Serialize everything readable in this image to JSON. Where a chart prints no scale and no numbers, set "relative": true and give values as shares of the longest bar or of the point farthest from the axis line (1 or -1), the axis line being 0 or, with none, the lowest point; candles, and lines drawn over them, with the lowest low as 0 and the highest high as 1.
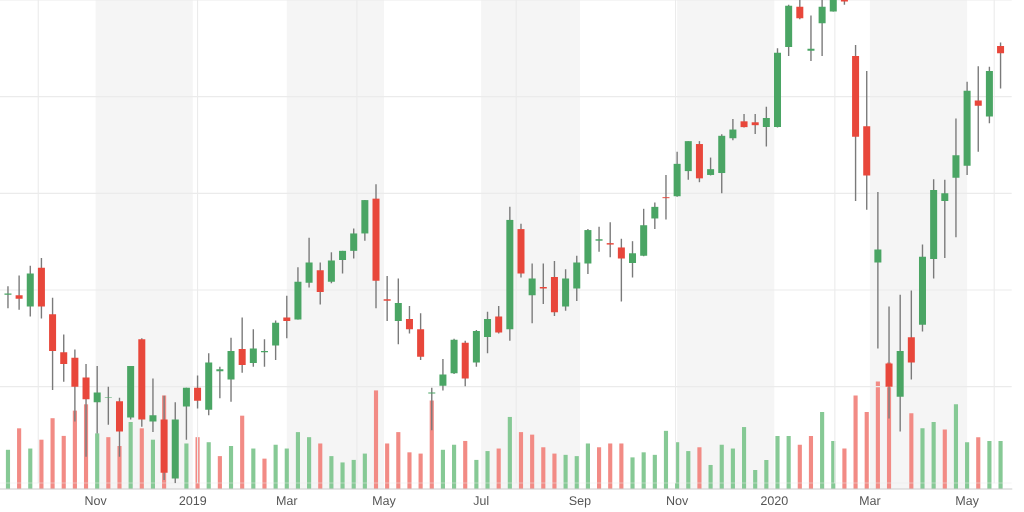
{
  "chart_data": [
    {
      "type": "candlestick",
      "relative": true,
      "grid": true,
      "tick_labels": false,
      "xlim": [
        "2018-09-02",
        "2020-05-29"
      ],
      "x": [
        "2018-09-07",
        "2018-09-14",
        "2018-09-21",
        "2018-09-28",
        "2018-10-05",
        "2018-10-12",
        "2018-10-19",
        "2018-10-26",
        "2018-11-02",
        "2018-11-09",
        "2018-11-16",
        "2018-11-23",
        "2018-11-30",
        "2018-12-07",
        "2018-12-14",
        "2018-12-21",
        "2018-12-28",
        "2019-01-04",
        "2019-01-11",
        "2019-01-18",
        "2019-01-25",
        "2019-02-01",
        "2019-02-08",
        "2019-02-15",
        "2019-02-22",
        "2019-03-01",
        "2019-03-08",
        "2019-03-15",
        "2019-03-22",
        "2019-03-29",
        "2019-04-05",
        "2019-04-12",
        "2019-04-19",
        "2019-04-26",
        "2019-05-03",
        "2019-05-10",
        "2019-05-17",
        "2019-05-24",
        "2019-05-31",
        "2019-06-07",
        "2019-06-14",
        "2019-06-21",
        "2019-06-28",
        "2019-07-05",
        "2019-07-12",
        "2019-07-19",
        "2019-07-26",
        "2019-08-02",
        "2019-08-09",
        "2019-08-16",
        "2019-08-23",
        "2019-08-30",
        "2019-09-06",
        "2019-09-13",
        "2019-09-20",
        "2019-09-27",
        "2019-10-04",
        "2019-10-11",
        "2019-10-18",
        "2019-10-25",
        "2019-11-01",
        "2019-11-08",
        "2019-11-15",
        "2019-11-22",
        "2019-11-29",
        "2019-12-06",
        "2019-12-13",
        "2019-12-20",
        "2019-12-27",
        "2020-01-03",
        "2020-01-10",
        "2020-01-17",
        "2020-01-24",
        "2020-01-31",
        "2020-02-07",
        "2020-02-14",
        "2020-02-21",
        "2020-02-28",
        "2020-03-06",
        "2020-03-13",
        "2020-03-20",
        "2020-03-27",
        "2020-04-03",
        "2020-04-10",
        "2020-04-17",
        "2020-04-24",
        "2020-05-01",
        "2020-05-08",
        "2020-05-15",
        "2020-05-22"
      ],
      "ohlc": [
        [
          0.39,
          0.408,
          0.362,
          0.393
        ],
        [
          0.389,
          0.43,
          0.359,
          0.382
        ],
        [
          0.366,
          0.45,
          0.345,
          0.434
        ],
        [
          0.446,
          0.466,
          0.341,
          0.366
        ],
        [
          0.35,
          0.384,
          0.193,
          0.274
        ],
        [
          0.271,
          0.308,
          0.21,
          0.247
        ],
        [
          0.26,
          0.277,
          0.128,
          0.2
        ],
        [
          0.219,
          0.247,
          0.055,
          0.174
        ],
        [
          0.168,
          0.243,
          0.103,
          0.188
        ],
        [
          0.177,
          0.2,
          0.121,
          0.178
        ],
        [
          0.17,
          0.177,
          0.055,
          0.107
        ],
        [
          0.136,
          0.243,
          0.132,
          0.243
        ],
        [
          0.298,
          0.3,
          0.117,
          0.132
        ],
        [
          0.128,
          0.217,
          0.106,
          0.141
        ],
        [
          0.132,
          0.181,
          0.007,
          0.022
        ],
        [
          0.01,
          0.168,
          0,
          0.132
        ],
        [
          0.159,
          0.198,
          0.09,
          0.198
        ],
        [
          0.198,
          0.223,
          0.155,
          0.171
        ],
        [
          0.152,
          0.269,
          0.141,
          0.25
        ],
        [
          0.232,
          0.241,
          0.176,
          0.236
        ],
        [
          0.215,
          0.301,
          0.169,
          0.274
        ],
        [
          0.278,
          0.343,
          0.229,
          0.245
        ],
        [
          0.249,
          0.319,
          0.241,
          0.279
        ],
        [
          0.271,
          0.298,
          0.241,
          0.274
        ],
        [
          0.285,
          0.337,
          0.255,
          0.332
        ],
        [
          0.343,
          0.388,
          0.3,
          0.336
        ],
        [
          0.339,
          0.447,
          0.339,
          0.417
        ],
        [
          0.415,
          0.508,
          0.405,
          0.457
        ],
        [
          0.441,
          0.457,
          0.37,
          0.396
        ],
        [
          0.417,
          0.478,
          0.414,
          0.461
        ],
        [
          0.462,
          0.481,
          0.434,
          0.481
        ],
        [
          0.481,
          0.527,
          0.465,
          0.517
        ],
        [
          0.517,
          0.586,
          0.502,
          0.586
        ],
        [
          0.589,
          0.619,
          0.362,
          0.419
        ],
        [
          0.381,
          0.429,
          0.336,
          0.378
        ],
        [
          0.336,
          0.424,
          0.288,
          0.373
        ],
        [
          0.34,
          0.367,
          0.31,
          0.319
        ],
        [
          0.319,
          0.352,
          0.255,
          0.262
        ],
        [
          0.186,
          0.198,
          0.11,
          0.188
        ],
        [
          0.202,
          0.257,
          0.192,
          0.225
        ],
        [
          0.228,
          0.299,
          0.226,
          0.297
        ],
        [
          0.291,
          0.295,
          0.201,
          0.217
        ],
        [
          0.25,
          0.317,
          0.241,
          0.315
        ],
        [
          0.303,
          0.355,
          0.269,
          0.34
        ],
        [
          0.345,
          0.367,
          0.31,
          0.312
        ],
        [
          0.319,
          0.572,
          0.295,
          0.545
        ],
        [
          0.526,
          0.537,
          0.426,
          0.434
        ],
        [
          0.389,
          0.455,
          0.331,
          0.424
        ],
        [
          0.406,
          0.455,
          0.371,
          0.403
        ],
        [
          0.427,
          0.46,
          0.346,
          0.354
        ],
        [
          0.366,
          0.443,
          0.357,
          0.424
        ],
        [
          0.403,
          0.471,
          0.377,
          0.457
        ],
        [
          0.455,
          0.526,
          0.433,
          0.524
        ],
        [
          0.502,
          0.531,
          0.479,
          0.505
        ],
        [
          0.497,
          0.54,
          0.468,
          0.494
        ],
        [
          0.488,
          0.506,
          0.376,
          0.465
        ],
        [
          0.456,
          0.501,
          0.426,
          0.476
        ],
        [
          0.471,
          0.568,
          0.47,
          0.534
        ],
        [
          0.548,
          0.581,
          0.526,
          0.572
        ],
        [
          0.592,
          0.638,
          0.546,
          0.59
        ],
        [
          0.594,
          0.686,
          0.593,
          0.661
        ],
        [
          0.646,
          0.708,
          0.628,
          0.708
        ],
        [
          0.702,
          0.708,
          0.623,
          0.631
        ],
        [
          0.638,
          0.674,
          0.637,
          0.65
        ],
        [
          0.642,
          0.722,
          0.6,
          0.719
        ],
        [
          0.714,
          0.754,
          0.71,
          0.732
        ],
        [
          0.749,
          0.764,
          0.736,
          0.737
        ],
        [
          0.747,
          0.764,
          0.723,
          0.741
        ],
        [
          0.737,
          0.779,
          0.697,
          0.756
        ],
        [
          0.737,
          0.9,
          0.736,
          0.891
        ],
        [
          0.903,
          0.99,
          0.884,
          0.988
        ],
        [
          0.986,
          1,
          0.96,
          0.962
        ],
        [
          0.895,
          0.968,
          0.874,
          0.899
        ],
        [
          0.952,
          1,
          0.884,
          0.986
        ],
        [
          0.976,
          1,
          0.976,
          1
        ],
        [
          1,
          1,
          0.99,
          0.997
        ],
        [
          0.884,
          0.907,
          0.584,
          0.717
        ],
        [
          0.739,
          0.853,
          0.566,
          0.637
        ],
        [
          0.457,
          0.603,
          0.279,
          0.484
        ],
        [
          0.248,
          0.366,
          0.134,
          0.2
        ],
        [
          0.179,
          0.39,
          0.107,
          0.274
        ],
        [
          0.302,
          0.399,
          0.215,
          0.25
        ],
        [
          0.328,
          0.494,
          0.314,
          0.469
        ],
        [
          0.464,
          0.629,
          0.424,
          0.607
        ],
        [
          0.584,
          0.628,
          0.466,
          0.6
        ],
        [
          0.632,
          0.755,
          0.509,
          0.679
        ],
        [
          0.657,
          0.831,
          0.638,
          0.812
        ],
        [
          0.792,
          0.863,
          0.686,
          0.781
        ],
        [
          0.759,
          0.862,
          0.745,
          0.853
        ],
        [
          0.905,
          0.912,
          0.817,
          0.89
        ]
      ],
      "colors": [
        "#4aa564",
        "#e8473b",
        "#4aa564",
        "#e8473b",
        "#e8473b",
        "#e8473b",
        "#e8473b",
        "#e8473b",
        "#4aa564",
        "#4aa564",
        "#e8473b",
        "#4aa564",
        "#e8473b",
        "#4aa564",
        "#e8473b",
        "#4aa564",
        "#4aa564",
        "#e8473b",
        "#4aa564",
        "#4aa564",
        "#4aa564",
        "#e8473b",
        "#4aa564",
        "#4aa564",
        "#4aa564",
        "#e8473b",
        "#4aa564",
        "#4aa564",
        "#e8473b",
        "#4aa564",
        "#4aa564",
        "#4aa564",
        "#4aa564",
        "#e8473b",
        "#e8473b",
        "#4aa564",
        "#e8473b",
        "#e8473b",
        "#4aa564",
        "#4aa564",
        "#4aa564",
        "#e8473b",
        "#4aa564",
        "#4aa564",
        "#e8473b",
        "#4aa564",
        "#e8473b",
        "#4aa564",
        "#e8473b",
        "#e8473b",
        "#4aa564",
        "#4aa564",
        "#4aa564",
        "#4aa564",
        "#e8473b",
        "#e8473b",
        "#4aa564",
        "#4aa564",
        "#4aa564",
        "#e8473b",
        "#4aa564",
        "#4aa564",
        "#e8473b",
        "#4aa564",
        "#4aa564",
        "#4aa564",
        "#e8473b",
        "#e8473b",
        "#4aa564",
        "#4aa564",
        "#4aa564",
        "#e8473b",
        "#4aa564",
        "#4aa564",
        "#4aa564",
        "#e8473b",
        "#e8473b",
        "#e8473b",
        "#4aa564",
        "#e8473b",
        "#4aa564",
        "#e8473b",
        "#4aa564",
        "#4aa564",
        "#4aa564",
        "#4aa564",
        "#4aa564",
        "#e8473b",
        "#4aa564",
        "#e8473b"
      ]
    },
    {
      "type": "bar",
      "relative": true,
      "tick_labels": "x",
      "xticks": [
        {
          "value": "2018-11-01",
          "label": "Nov"
        },
        {
          "value": "2019-01-01",
          "label": "2019"
        },
        {
          "value": "2019-03-01",
          "label": "Mar"
        },
        {
          "value": "2019-05-01",
          "label": "May"
        },
        {
          "value": "2019-07-01",
          "label": "Jul"
        },
        {
          "value": "2019-09-01",
          "label": "Sep"
        },
        {
          "value": "2019-11-01",
          "label": "Nov"
        },
        {
          "value": "2020-01-01",
          "label": "2020"
        },
        {
          "value": "2020-03-01",
          "label": "Mar"
        },
        {
          "value": "2020-05-01",
          "label": "May"
        }
      ],
      "x": [
        "2018-09-07",
        "2018-09-14",
        "2018-09-21",
        "2018-09-28",
        "2018-10-05",
        "2018-10-12",
        "2018-10-19",
        "2018-10-26",
        "2018-11-02",
        "2018-11-09",
        "2018-11-16",
        "2018-11-23",
        "2018-11-30",
        "2018-12-07",
        "2018-12-14",
        "2018-12-21",
        "2018-12-28",
        "2019-01-04",
        "2019-01-11",
        "2019-01-18",
        "2019-01-25",
        "2019-02-01",
        "2019-02-08",
        "2019-02-15",
        "2019-02-22",
        "2019-03-01",
        "2019-03-08",
        "2019-03-15",
        "2019-03-22",
        "2019-03-29",
        "2019-04-05",
        "2019-04-12",
        "2019-04-19",
        "2019-04-26",
        "2019-05-03",
        "2019-05-10",
        "2019-05-17",
        "2019-05-24",
        "2019-05-31",
        "2019-06-07",
        "2019-06-14",
        "2019-06-21",
        "2019-06-28",
        "2019-07-05",
        "2019-07-12",
        "2019-07-19",
        "2019-07-26",
        "2019-08-02",
        "2019-08-09",
        "2019-08-16",
        "2019-08-23",
        "2019-08-30",
        "2019-09-06",
        "2019-09-13",
        "2019-09-20",
        "2019-09-27",
        "2019-10-04",
        "2019-10-11",
        "2019-10-18",
        "2019-10-25",
        "2019-11-01",
        "2019-11-08",
        "2019-11-15",
        "2019-11-22",
        "2019-11-29",
        "2019-12-06",
        "2019-12-13",
        "2019-12-20",
        "2019-12-27",
        "2020-01-03",
        "2020-01-10",
        "2020-01-17",
        "2020-01-24",
        "2020-01-31",
        "2020-02-07",
        "2020-02-14",
        "2020-02-21",
        "2020-02-28",
        "2020-03-06",
        "2020-03-13",
        "2020-03-20",
        "2020-03-27",
        "2020-04-03",
        "2020-04-10",
        "2020-04-17",
        "2020-04-24",
        "2020-05-01",
        "2020-05-08",
        "2020-05-15",
        "2020-05-22"
      ],
      "values": [
        0.31,
        0.48,
        0.32,
        0.39,
        0.56,
        0.42,
        0.62,
        0.67,
        0.44,
        0.41,
        0.34,
        0.53,
        0.48,
        0.39,
        0.74,
        null,
        0.36,
        0.41,
        0.37,
        0.26,
        0.34,
        0.58,
        0.32,
        0.24,
        0.35,
        0.32,
        0.45,
        0.41,
        0.36,
        0.26,
        0.21,
        0.23,
        0.28,
        0.78,
        0.36,
        0.45,
        0.29,
        0.28,
        0.7,
        0.31,
        0.35,
        0.38,
        0.23,
        0.3,
        0.32,
        0.57,
        0.45,
        0.43,
        0.33,
        0.28,
        0.27,
        0.26,
        0.36,
        0.33,
        0.36,
        0.36,
        0.25,
        0.29,
        0.27,
        0.46,
        0.37,
        0.3,
        0.33,
        0.19,
        0.35,
        0.32,
        0.49,
        0.15,
        0.23,
        0.42,
        0.42,
        0.35,
        0.42,
        0.61,
        0.38,
        0.32,
        0.74,
        0.61,
        0.85,
        1,
        null,
        0.6,
        0.48,
        0.53,
        0.47,
        0.67,
        0.37,
        0.41,
        0.38,
        0.38
      ],
      "colors": [
        "#86c995",
        "#f28b85",
        "#86c995",
        "#f28b85",
        "#f28b85",
        "#f28b85",
        "#f28b85",
        "#f28b85",
        "#86c995",
        "#f28b85",
        "#f28b85",
        "#86c995",
        "#f28b85",
        "#86c995",
        "#f28b85",
        "#86c995",
        "#86c995",
        "#f28b85",
        "#86c995",
        "#f28b85",
        "#86c995",
        "#f28b85",
        "#86c995",
        "#f28b85",
        "#86c995",
        "#86c995",
        "#86c995",
        "#86c995",
        "#f28b85",
        "#86c995",
        "#86c995",
        "#86c995",
        "#86c995",
        "#f28b85",
        "#f28b85",
        "#f28b85",
        "#f28b85",
        "#f28b85",
        "#f28b85",
        "#86c995",
        "#86c995",
        "#f28b85",
        "#86c995",
        "#86c995",
        "#f28b85",
        "#86c995",
        "#f28b85",
        "#f28b85",
        "#f28b85",
        "#f28b85",
        "#86c995",
        "#86c995",
        "#86c995",
        "#f28b85",
        "#f28b85",
        "#f28b85",
        "#86c995",
        "#86c995",
        "#86c995",
        "#86c995",
        "#86c995",
        "#86c995",
        "#f28b85",
        "#86c995",
        "#86c995",
        "#86c995",
        "#86c995",
        "#86c995",
        "#86c995",
        "#86c995",
        "#86c995",
        "#f28b85",
        "#f28b85",
        "#86c995",
        "#86c995",
        "#f28b85",
        "#f28b85",
        "#f28b85",
        "#f28b85",
        "#f28b85",
        "#86c995",
        "#f28b85",
        "#86c995",
        "#86c995",
        "#f28b85",
        "#86c995",
        "#86c995",
        "#f28b85",
        "#86c995",
        "#86c995"
      ],
      "xlim": [
        "2018-09-02",
        "2020-05-29"
      ],
      "bands": [
        {
          "axis": "x",
          "from": "2018-11-01",
          "to": "2019-01-01",
          "color": "#f5f5f5"
        },
        {
          "axis": "x",
          "from": "2019-03-01",
          "to": "2019-05-01",
          "color": "#f5f5f5"
        },
        {
          "axis": "x",
          "from": "2019-07-01",
          "to": "2019-09-01",
          "color": "#f5f5f5"
        },
        {
          "axis": "x",
          "from": "2019-11-01",
          "to": "2020-01-01",
          "color": "#f5f5f5"
        },
        {
          "axis": "x",
          "from": "2020-03-01",
          "to": "2020-05-01",
          "color": "#f5f5f5"
        }
      ]
    }
  ]
}
